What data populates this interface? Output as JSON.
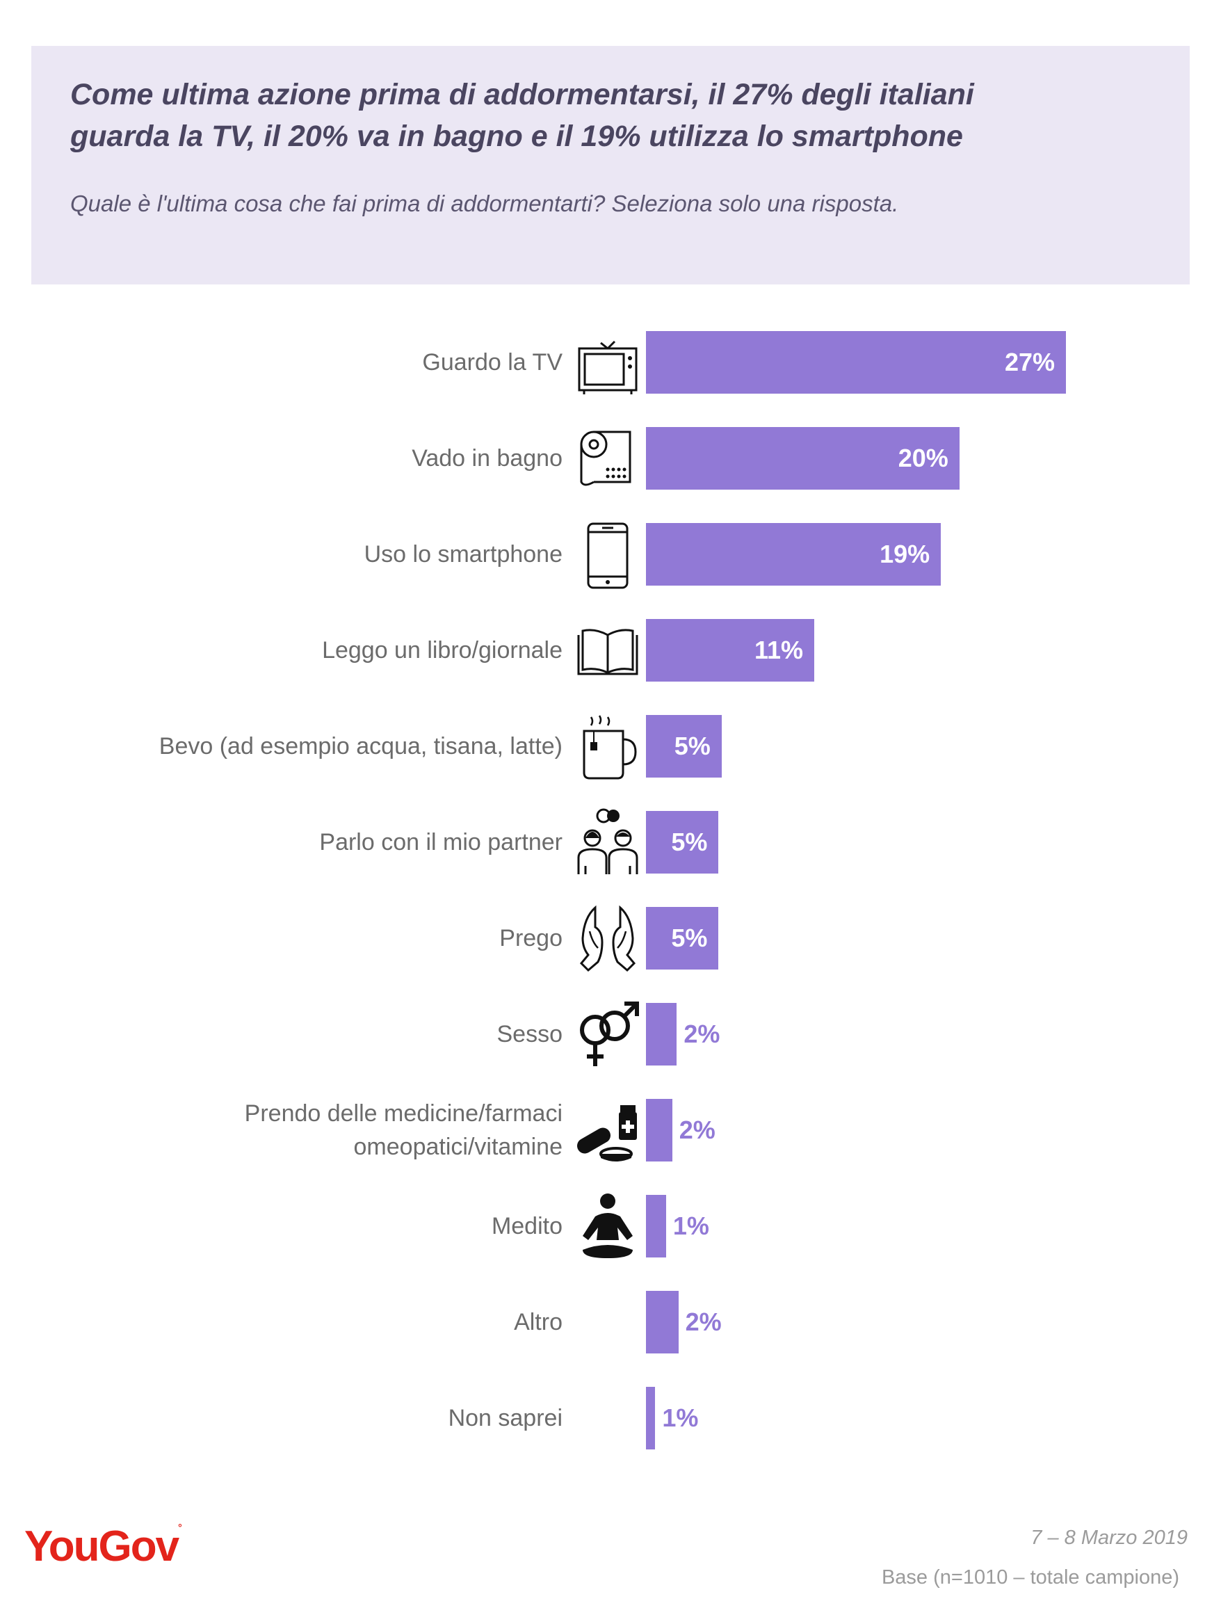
{
  "header": {
    "title_line1": "Come ultima azione prima di addormentarsi, il 27% degli italiani",
    "title_line2": "guarda la TV, il 20% va in bagno e il 19% utilizza lo smartphone",
    "subtitle": "Quale è l'ultima cosa che fai prima di addormentarti? Seleziona solo una risposta."
  },
  "chart_data": {
    "type": "bar",
    "orientation": "horizontal",
    "title": "Come ultima azione prima di addormentarsi, il 27% degli italiani guarda la TV, il 20% va in bagno e il 19% utilizza lo smartphone",
    "subtitle": "Quale è l'ultima cosa che fai prima di addormentarti? Seleziona solo una risposta.",
    "categories": [
      "Guardo la TV",
      "Vado in bagno",
      "Uso lo smartphone",
      "Leggo un libro/giornale",
      "Bevo (ad esempio acqua, tisana, latte)",
      "Parlo con il mio partner",
      "Prego",
      "Sesso",
      "Prendo delle medicine/farmaci omeopatici/vitamine",
      "Medito",
      "Altro",
      "Non saprei"
    ],
    "label_lines": [
      [
        "Guardo la TV"
      ],
      [
        "Vado in bagno"
      ],
      [
        "Uso lo smartphone"
      ],
      [
        "Leggo un libro/giornale"
      ],
      [
        "Bevo (ad esempio acqua, tisana, latte)"
      ],
      [
        "Parlo con il mio partner"
      ],
      [
        "Prego"
      ],
      [
        "Sesso"
      ],
      [
        "Prendo delle medicine/farmaci",
        "omeopatici/vitamine"
      ],
      [
        "Medito"
      ],
      [
        "Altro"
      ],
      [
        "Non saprei"
      ]
    ],
    "values": [
      27.2,
      20.3,
      19.1,
      10.9,
      4.9,
      4.7,
      4.7,
      2.0,
      1.7,
      1.3,
      2.1,
      0.6
    ],
    "value_labels": [
      "27%",
      "20%",
      "19%",
      "11%",
      "5%",
      "5%",
      "5%",
      "2%",
      "2%",
      "1%",
      "2%",
      "1%"
    ],
    "icons": [
      "tv-icon",
      "toilet-paper-icon",
      "smartphone-icon",
      "book-icon",
      "mug-icon",
      "couple-icon",
      "praying-hands-icon",
      "gender-symbols-icon",
      "pills-icon",
      "meditation-icon",
      "",
      ""
    ],
    "xlim": [
      0,
      27.2
    ],
    "unit": "%",
    "bar_color": "#9179d6",
    "legend": "none",
    "grid": false
  },
  "footer": {
    "logo": "YouGov",
    "date": "7 – 8 Marzo 2019",
    "base": "Base (n=1010 – totale campione)"
  },
  "colors": {
    "header_bg": "#ebe7f4",
    "title": "#4a4560",
    "bar": "#9179d6",
    "logo": "#e3241b"
  }
}
